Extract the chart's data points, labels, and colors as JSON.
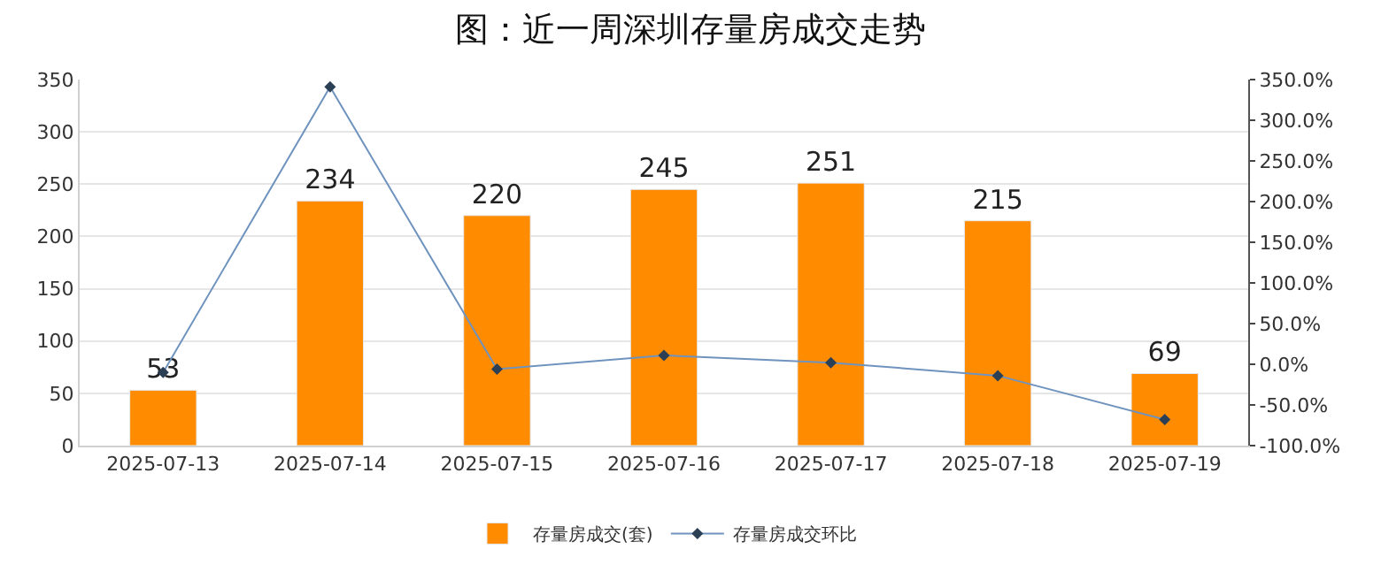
{
  "chart_data": {
    "type": "bar",
    "title": "图：近一周深圳存量房成交走势",
    "categories": [
      "2025-07-13",
      "2025-07-14",
      "2025-07-15",
      "2025-07-16",
      "2025-07-17",
      "2025-07-18",
      "2025-07-19"
    ],
    "series": [
      {
        "name": "存量房成交(套)",
        "color": "#ff8c00",
        "values": [
          53,
          234,
          220,
          245,
          251,
          215,
          69
        ],
        "value_labels": [
          "53",
          "234",
          "220",
          "245",
          "251",
          "215",
          "69"
        ]
      },
      {
        "name": "存量房成交环比",
        "type": "line",
        "axis": "y2",
        "color": "#6f93bf",
        "values": [
          -10,
          341,
          -6,
          11,
          2,
          -14,
          -68
        ]
      }
    ],
    "ylim": [
      0,
      350
    ],
    "yticks": [
      0,
      50,
      100,
      150,
      200,
      250,
      300,
      350
    ],
    "y2lim": [
      -100,
      350
    ],
    "y2ticks": [
      {
        "value": -100,
        "label": "-100.0%"
      },
      {
        "value": -50,
        "label": "-50.0%"
      },
      {
        "value": 0,
        "label": "0.0%"
      },
      {
        "value": 50,
        "label": "50.0%"
      },
      {
        "value": 100,
        "label": "100.0%"
      },
      {
        "value": 150,
        "label": "150.0%"
      },
      {
        "value": 200,
        "label": "200.0%"
      },
      {
        "value": 250,
        "label": "250.0%"
      },
      {
        "value": 300,
        "label": "300.0%"
      },
      {
        "value": 350,
        "label": "350.0%"
      }
    ],
    "grid": "y",
    "legend": "bottom",
    "marker": "diamond"
  }
}
